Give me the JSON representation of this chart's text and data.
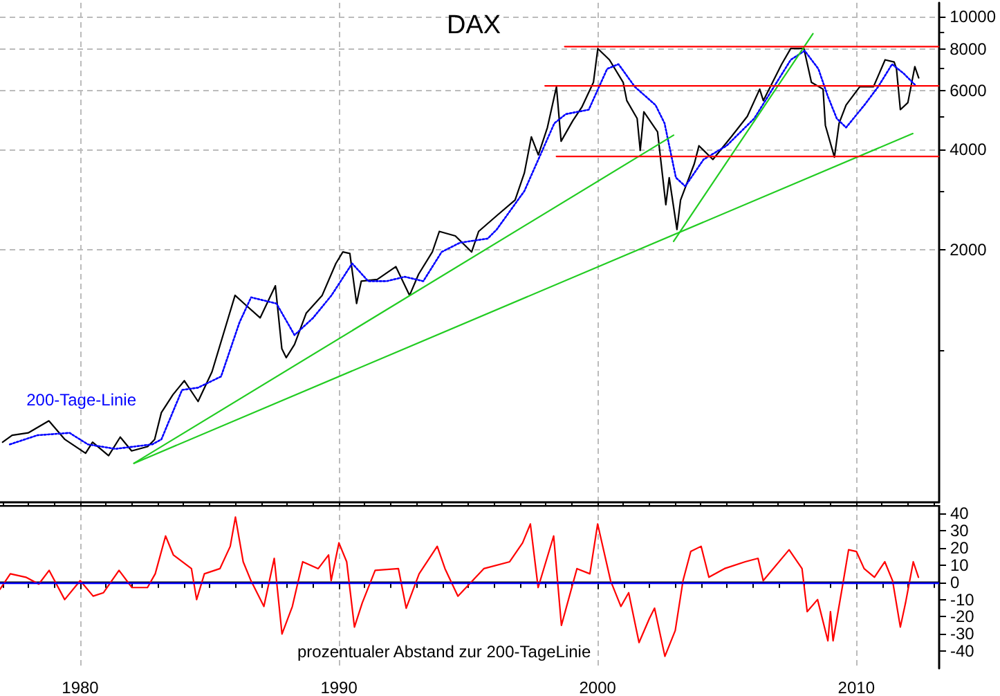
{
  "chart_data": [
    {
      "type": "line",
      "title": "DAX",
      "log": true,
      "grid": true,
      "tick_labels": "y",
      "marker": "none",
      "xlim": [
        1976.9,
        2013.2
      ],
      "xticks": [
        {
          "value": 1977,
          "label": null
        },
        {
          "value": 1978,
          "label": null
        },
        {
          "value": 1979,
          "label": null
        },
        1980,
        {
          "value": 1981,
          "label": null
        },
        {
          "value": 1982,
          "label": null
        },
        {
          "value": 1983,
          "label": null
        },
        {
          "value": 1984,
          "label": null
        },
        {
          "value": 1985,
          "label": null
        },
        {
          "value": 1986,
          "label": null
        },
        {
          "value": 1987,
          "label": null
        },
        {
          "value": 1988,
          "label": null
        },
        {
          "value": 1989,
          "label": null
        },
        1990,
        {
          "value": 1991,
          "label": null
        },
        {
          "value": 1992,
          "label": null
        },
        {
          "value": 1993,
          "label": null
        },
        {
          "value": 1994,
          "label": null
        },
        {
          "value": 1995,
          "label": null
        },
        {
          "value": 1996,
          "label": null
        },
        {
          "value": 1997,
          "label": null
        },
        {
          "value": 1998,
          "label": null
        },
        {
          "value": 1999,
          "label": null
        },
        2000,
        {
          "value": 2001,
          "label": null
        },
        {
          "value": 2002,
          "label": null
        },
        {
          "value": 2003,
          "label": null
        },
        {
          "value": 2004,
          "label": null
        },
        {
          "value": 2005,
          "label": null
        },
        {
          "value": 2006,
          "label": null
        },
        {
          "value": 2007,
          "label": null
        },
        {
          "value": 2008,
          "label": null
        },
        {
          "value": 2009,
          "label": null
        },
        2010,
        {
          "value": 2011,
          "label": null
        },
        {
          "value": 2012,
          "label": null
        },
        {
          "value": 2013,
          "label": null
        }
      ],
      "ylim": [
        350,
        11000
      ],
      "yticks": [
        {
          "value": 1000,
          "label": null
        },
        2000,
        {
          "value": 3000,
          "label": null
        },
        4000,
        {
          "value": 5000,
          "label": null
        },
        6000,
        {
          "value": 7000,
          "label": null
        },
        8000,
        {
          "value": 9000,
          "label": null
        },
        10000
      ],
      "series": [
        {
          "color": "#000000",
          "line_style": "solid",
          "x": [
            1977.0,
            1977.37,
            1977.99,
            1978.79,
            1979.41,
            1980.21,
            1980.48,
            1981.1,
            1981.55,
            1981.99,
            1982.61,
            1982.88,
            1983.14,
            1983.59,
            1984.03,
            1984.56,
            1985.1,
            1985.63,
            1985.99,
            1986.34,
            1986.96,
            1987.55,
            1987.8,
            1987.97,
            1988.29,
            1988.74,
            1989.36,
            1989.89,
            1990.16,
            1990.43,
            1990.69,
            1990.87,
            1991.49,
            1992.21,
            1992.74,
            1993.09,
            1993.62,
            1993.89,
            1994.51,
            1995.14,
            1995.41,
            1996.11,
            1996.82,
            1997.18,
            1997.45,
            1997.72,
            1998.07,
            1998.42,
            1998.6,
            1999.05,
            1999.4,
            1999.85,
            2000.02,
            2000.47,
            2001.0,
            2001.14,
            2001.54,
            2001.66,
            2001.8,
            2002.33,
            2002.65,
            2002.78,
            2003.08,
            2003.22,
            2003.75,
            2003.93,
            2004.47,
            2005.18,
            2005.8,
            2006.28,
            2006.42,
            2007.13,
            2007.48,
            2007.99,
            2008.28,
            2008.73,
            2008.82,
            2009.17,
            2009.35,
            2009.62,
            2010.15,
            2010.68,
            2011.13,
            2011.48,
            2011.57,
            2011.72,
            2012.01,
            2012.28,
            2012.43
          ],
          "values": [
            530,
            556,
            565,
            614,
            540,
            491,
            530,
            483,
            549,
            499,
            514,
            540,
            650,
            736,
            810,
            702,
            862,
            1180,
            1460,
            1380,
            1250,
            1560,
            1010,
            950,
            1040,
            1290,
            1460,
            1820,
            1970,
            1950,
            1380,
            1610,
            1630,
            1780,
            1460,
            1690,
            1970,
            2270,
            2200,
            1970,
            2270,
            2530,
            2820,
            3400,
            4360,
            3850,
            4650,
            6160,
            4230,
            4870,
            5350,
            6350,
            8020,
            7420,
            6350,
            5600,
            4950,
            3970,
            5180,
            4510,
            2730,
            3290,
            2300,
            2820,
            3620,
            4100,
            3730,
            4360,
            5020,
            6060,
            5600,
            7200,
            8020,
            8020,
            6350,
            6060,
            4720,
            3790,
            4790,
            5430,
            6160,
            6160,
            7420,
            7310,
            6970,
            5260,
            5520,
            7080,
            6550
          ]
        },
        {
          "name": "200-Tage-Linie",
          "color": "#0000ff",
          "line_style": "dotted",
          "x": [
            1977.28,
            1978.35,
            1979.59,
            1980.3,
            1981.36,
            1982.79,
            1983.14,
            1983.94,
            1984.56,
            1985.45,
            1986.16,
            1986.61,
            1987.59,
            1988.29,
            1989.01,
            1989.72,
            1990.52,
            1991.14,
            1991.85,
            1992.56,
            1993.27,
            1993.98,
            1994.69,
            1995.76,
            1996.11,
            1997.18,
            1997.72,
            1998.34,
            1998.78,
            1999.67,
            2000.38,
            2000.82,
            2001.45,
            2002.25,
            2002.6,
            2003.04,
            2003.4,
            2004.11,
            2005.0,
            2006.07,
            2007.48,
            2008.02,
            2008.55,
            2008.91,
            2009.26,
            2009.62,
            2010.33,
            2010.86,
            2011.4,
            2011.84,
            2012.28
          ],
          "values": [
            522,
            556,
            565,
            522,
            506,
            522,
            540,
            760,
            772,
            834,
            1210,
            1440,
            1380,
            1110,
            1250,
            1460,
            1820,
            1610,
            1610,
            1660,
            1610,
            1970,
            2100,
            2160,
            2300,
            3000,
            3730,
            4790,
            5100,
            5260,
            6970,
            7200,
            6160,
            5430,
            4790,
            3290,
            3100,
            3730,
            4100,
            4950,
            7420,
            7900,
            6970,
            5780,
            4950,
            4650,
            5430,
            6160,
            7200,
            6760,
            6250
          ]
        },
        {
          "color": "#22cc22",
          "line_style": "solid",
          "x": [
            1982.08,
            2002.95
          ],
          "values": [
            458,
            4410
          ]
        },
        {
          "color": "#22cc22",
          "line_style": "solid",
          "x": [
            1982.08,
            2012.2
          ],
          "values": [
            458,
            4460
          ]
        },
        {
          "color": "#22cc22",
          "line_style": "solid",
          "x": [
            2002.95,
            2008.34
          ],
          "values": [
            2120,
            8890
          ]
        },
        {
          "color": "#ff0000",
          "line_style": "solid",
          "x": [
            1998.74,
            2013.2
          ],
          "values": [
            8130,
            8130
          ]
        },
        {
          "color": "#ff0000",
          "line_style": "solid",
          "x": [
            1997.98,
            2013.2
          ],
          "values": [
            6200,
            6200
          ]
        },
        {
          "color": "#ff0000",
          "line_style": "solid",
          "x": [
            1998.42,
            2013.2
          ],
          "values": [
            3810,
            3810
          ]
        }
      ]
    },
    {
      "type": "line",
      "annotations": [
        "prozentualer Abstand zur 200-TageLinie"
      ],
      "grid": "x",
      "marker": "none",
      "xlim": [
        1976.9,
        2013.2
      ],
      "xticks": [
        {
          "value": 1977,
          "label": null
        },
        {
          "value": 1978,
          "label": null
        },
        {
          "value": 1979,
          "label": null
        },
        1980,
        {
          "value": 1981,
          "label": null
        },
        {
          "value": 1982,
          "label": null
        },
        {
          "value": 1983,
          "label": null
        },
        {
          "value": 1984,
          "label": null
        },
        {
          "value": 1985,
          "label": null
        },
        {
          "value": 1986,
          "label": null
        },
        {
          "value": 1987,
          "label": null
        },
        {
          "value": 1988,
          "label": null
        },
        {
          "value": 1989,
          "label": null
        },
        1990,
        {
          "value": 1991,
          "label": null
        },
        {
          "value": 1992,
          "label": null
        },
        {
          "value": 1993,
          "label": null
        },
        {
          "value": 1994,
          "label": null
        },
        {
          "value": 1995,
          "label": null
        },
        {
          "value": 1996,
          "label": null
        },
        {
          "value": 1997,
          "label": null
        },
        {
          "value": 1998,
          "label": null
        },
        {
          "value": 1999,
          "label": null
        },
        2000,
        {
          "value": 2001,
          "label": null
        },
        {
          "value": 2002,
          "label": null
        },
        {
          "value": 2003,
          "label": null
        },
        {
          "value": 2004,
          "label": null
        },
        {
          "value": 2005,
          "label": null
        },
        {
          "value": 2006,
          "label": null
        },
        {
          "value": 2007,
          "label": null
        },
        {
          "value": 2008,
          "label": null
        },
        {
          "value": 2009,
          "label": null
        },
        2010,
        {
          "value": 2011,
          "label": null
        },
        {
          "value": 2012,
          "label": null
        },
        {
          "value": 2013,
          "label": null
        }
      ],
      "ylim": [
        -50,
        45
      ],
      "yticks": [
        -40,
        -30,
        -20,
        -10,
        0,
        10,
        20,
        30,
        40
      ],
      "ref_lines": [
        {
          "axis": "y",
          "value": 0,
          "color": "#0000ff"
        }
      ],
      "series": [
        {
          "color": "#ff0000",
          "line_style": "solid",
          "x": [
            1976.9,
            1977.3,
            1977.9,
            1978.4,
            1978.8,
            1979.4,
            1980.0,
            1980.5,
            1980.9,
            1981.5,
            1982.0,
            1982.6,
            1982.9,
            1983.3,
            1983.6,
            1984.3,
            1984.5,
            1984.8,
            1985.4,
            1985.8,
            1986.0,
            1986.3,
            1986.6,
            1987.1,
            1987.5,
            1987.8,
            1988.2,
            1988.6,
            1989.2,
            1989.6,
            1989.7,
            1990.0,
            1990.3,
            1990.6,
            1990.9,
            1991.4,
            1992.3,
            1992.6,
            1993.1,
            1993.8,
            1994.1,
            1994.6,
            1995.6,
            1996.6,
            1997.1,
            1997.4,
            1997.7,
            1998.3,
            1998.6,
            1999.2,
            1999.7,
            2000.0,
            2000.5,
            2000.9,
            2001.2,
            2001.6,
            2002.0,
            2002.2,
            2002.6,
            2003.0,
            2003.3,
            2003.6,
            2004.0,
            2004.3,
            2004.9,
            2005.7,
            2006.2,
            2006.4,
            2007.4,
            2007.9,
            2008.1,
            2008.5,
            2008.9,
            2009.0,
            2009.1,
            2009.5,
            2009.7,
            2010.0,
            2010.3,
            2010.7,
            2011.1,
            2011.4,
            2011.7,
            2011.9,
            2012.2,
            2012.4
          ],
          "values": [
            -4,
            5,
            3,
            -1,
            7,
            -10,
            1,
            -8,
            -6,
            7,
            -3,
            -3,
            5,
            27,
            16,
            8,
            -10,
            5,
            8,
            21,
            38,
            12,
            1,
            -14,
            14,
            -30,
            -14,
            12,
            8,
            16,
            1,
            23,
            12,
            -26,
            -12,
            7,
            8,
            -15,
            5,
            21,
            8,
            -8,
            8,
            12,
            23,
            34,
            -3,
            27,
            -25,
            8,
            5,
            34,
            1,
            -14,
            -6,
            -35,
            -21,
            -15,
            -43,
            -28,
            1,
            18,
            21,
            3,
            8,
            12,
            14,
            1,
            19,
            8,
            -17,
            -10,
            -34,
            -17,
            -34,
            1,
            19,
            18,
            8,
            3,
            12,
            1,
            -26,
            -12,
            12,
            3
          ]
        }
      ]
    }
  ]
}
